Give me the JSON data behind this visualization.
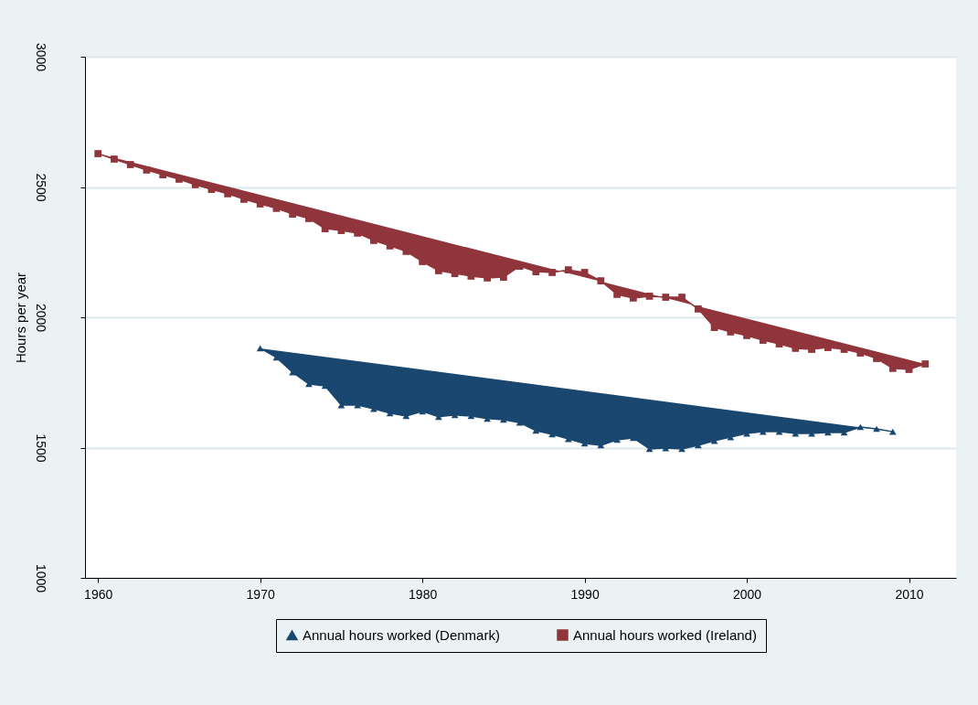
{
  "chart_data": {
    "type": "line",
    "ylabel": "Hours per year",
    "xlim": [
      1959.2,
      2012.9
    ],
    "xticks": [
      1960,
      1970,
      1980,
      1990,
      2000,
      2010
    ],
    "ylim": [
      1000,
      3000
    ],
    "yticks": [
      1000,
      1500,
      2000,
      2500,
      3000
    ],
    "grid": "y",
    "legend": "bottom",
    "series": [
      {
        "name": "Annual hours worked (Denmark)",
        "color": "#1a476f",
        "marker": "triangle",
        "x": [
          1970,
          1971,
          1972,
          1973,
          1974,
          1975,
          1976,
          1977,
          1978,
          1979,
          1980,
          1981,
          1982,
          1983,
          1984,
          1985,
          1986,
          1987,
          1988,
          1989,
          1990,
          1991,
          1992,
          1993,
          1994,
          1995,
          1996,
          1997,
          1998,
          1999,
          2000,
          2001,
          2002,
          2003,
          2004,
          2005,
          2006,
          2007,
          2008,
          2009
        ],
        "values": [
          1881,
          1846,
          1789,
          1744,
          1737,
          1663,
          1663,
          1649,
          1632,
          1621,
          1639,
          1618,
          1625,
          1621,
          1611,
          1607,
          1596,
          1565,
          1551,
          1533,
          1516,
          1509,
          1530,
          1537,
          1495,
          1498,
          1495,
          1509,
          1526,
          1540,
          1554,
          1561,
          1561,
          1554,
          1554,
          1558,
          1558,
          1579,
          1572,
          1561
        ]
      },
      {
        "name": "Annual hours worked (Ireland)",
        "color": "#90353b",
        "marker": "square",
        "x": [
          1960,
          1961,
          1962,
          1963,
          1964,
          1965,
          1966,
          1967,
          1968,
          1969,
          1970,
          1971,
          1972,
          1973,
          1974,
          1975,
          1976,
          1977,
          1978,
          1979,
          1980,
          1981,
          1982,
          1983,
          1984,
          1985,
          1986,
          1987,
          1988,
          1989,
          1990,
          1991,
          1992,
          1993,
          1994,
          1995,
          1996,
          1997,
          1998,
          1999,
          2000,
          2001,
          2002,
          2003,
          2004,
          2005,
          2006,
          2007,
          2008,
          2009,
          2010,
          2011
        ],
        "values": [
          2628,
          2607,
          2586,
          2565,
          2547,
          2530,
          2509,
          2491,
          2474,
          2453,
          2435,
          2418,
          2396,
          2379,
          2340,
          2333,
          2323,
          2295,
          2274,
          2253,
          2214,
          2179,
          2168,
          2158,
          2151,
          2154,
          2196,
          2175,
          2172,
          2182,
          2172,
          2140,
          2088,
          2074,
          2081,
          2077,
          2077,
          2032,
          1961,
          1944,
          1930,
          1912,
          1898,
          1881,
          1877,
          1884,
          1877,
          1863,
          1842,
          1804,
          1800,
          1821
        ]
      }
    ]
  }
}
